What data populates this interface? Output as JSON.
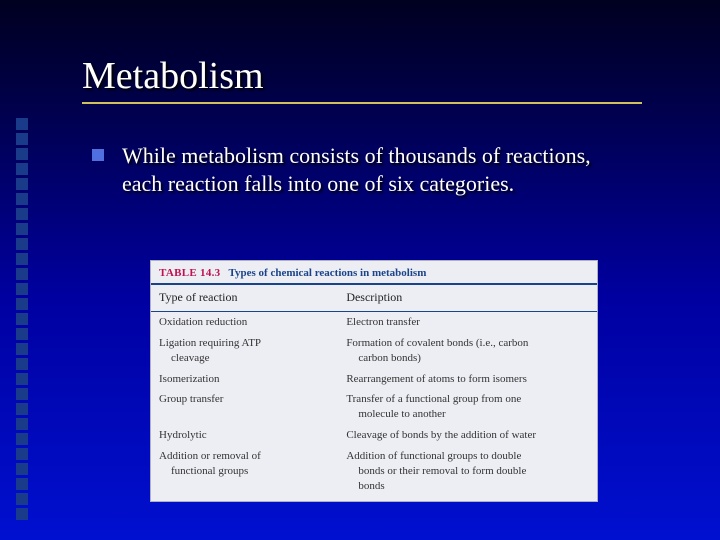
{
  "slide": {
    "title": "Metabolism",
    "bullet": "While metabolism consists of thousands of reactions, each reaction falls into one of six categories."
  },
  "table": {
    "number": "TABLE 14.3",
    "caption": "Types of chemical reactions in metabolism",
    "headers": {
      "c1": "Type of reaction",
      "c2": "Description"
    },
    "rows": [
      {
        "t": "Oxidation reduction",
        "d": "Electron transfer"
      },
      {
        "t": "Ligation requiring ATP",
        "t2": "cleavage",
        "d": "Formation of covalent bonds (i.e., carbon",
        "d2": "carbon bonds)"
      },
      {
        "t": "Isomerization",
        "d": "Rearrangement of atoms to form isomers"
      },
      {
        "t": "Group transfer",
        "d": "Transfer of a functional group from one",
        "d2": "molecule to another"
      },
      {
        "t": "Hydrolytic",
        "d": "Cleavage of bonds by the addition of water"
      },
      {
        "t": "Addition or removal of",
        "t2": "functional groups",
        "d": "Addition of functional groups to double",
        "d2": "bonds or their removal to form double",
        "d3": "bonds"
      }
    ]
  },
  "style": {
    "titleColor": "#ffffff",
    "bulletColor": "#ffffff",
    "bulletMarker": "#5070e0",
    "underline": "#d4c05a",
    "sidebarSquare": "#1a3a8a",
    "tableBg": "#edeef4",
    "tableNumColor": "#c01050",
    "tableCaptionColor": "#1a448a",
    "tableRuleColor": "#1a448a"
  }
}
